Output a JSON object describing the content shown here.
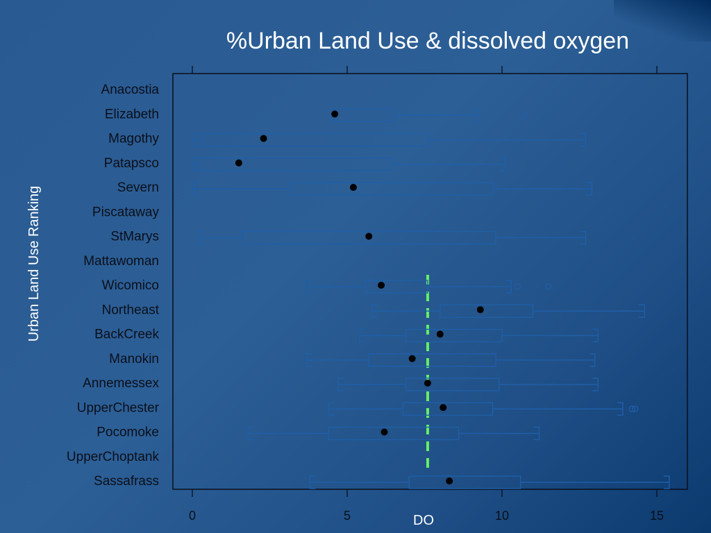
{
  "colors": {
    "background": "#2c5f96",
    "box_stroke": "#1f5fa8",
    "median_dot": "#000000",
    "reference_line": "#66ee66",
    "text_light": "#ffffff",
    "text_dark": "#0b0f1a"
  },
  "chart_data": {
    "type": "boxplot",
    "title": "%Urban Land Use & dissolved oxygen",
    "xlabel": "DO",
    "ylabel": "Urban  Land Use Ranking",
    "xlim": [
      -0.6,
      15.9
    ],
    "xticks": [
      0,
      5,
      10,
      15
    ],
    "reference_line": {
      "x": 7.6,
      "style": "dashed",
      "color": "#66ee66"
    },
    "categories": [
      "Anacostia",
      "Elizabeth",
      "Magothy",
      "Patapsco",
      "Severn",
      "Piscataway",
      "StMarys",
      "Mattawoman",
      "Wicomico",
      "Northeast",
      "BackCreek",
      "Manokin",
      "Annemessex",
      "UpperChester",
      "Pocomoke",
      "UpperChoptank",
      "Sassafrass"
    ],
    "boxes": [
      null,
      {
        "whislo": 4.5,
        "q1": 4.5,
        "med": 4.6,
        "q3": 6.5,
        "whishi": 9.2,
        "fliers": [
          10.7
        ]
      },
      {
        "whislo": 0.0,
        "q1": 0.3,
        "med": 2.3,
        "q3": 7.6,
        "whishi": 12.7,
        "fliers": []
      },
      {
        "whislo": 0.0,
        "q1": 0.2,
        "med": 1.5,
        "q3": 6.5,
        "whishi": 10.1,
        "fliers": []
      },
      {
        "whislo": 0.0,
        "q1": 3.2,
        "med": 5.2,
        "q3": 9.7,
        "whishi": 12.9,
        "fliers": []
      },
      null,
      {
        "whislo": 0.2,
        "q1": 1.6,
        "med": 5.7,
        "q3": 9.8,
        "whishi": 12.7,
        "fliers": []
      },
      null,
      {
        "whislo": 3.7,
        "q1": 5.6,
        "med": 6.1,
        "q3": 7.6,
        "whishi": 10.3,
        "fliers": [
          10.5,
          11.5
        ]
      },
      {
        "whislo": 5.8,
        "q1": 8.0,
        "med": 9.3,
        "q3": 11.0,
        "whishi": 14.6,
        "fliers": []
      },
      {
        "whislo": 5.4,
        "q1": 6.9,
        "med": 8.0,
        "q3": 10.0,
        "whishi": 13.1,
        "fliers": []
      },
      {
        "whislo": 3.7,
        "q1": 5.7,
        "med": 7.1,
        "q3": 9.8,
        "whishi": 13.0,
        "fliers": []
      },
      {
        "whislo": 4.7,
        "q1": 6.9,
        "med": 7.6,
        "q3": 9.9,
        "whishi": 13.1,
        "fliers": []
      },
      {
        "whislo": 4.4,
        "q1": 6.8,
        "med": 8.1,
        "q3": 9.7,
        "whishi": 13.9,
        "fliers": [
          14.2,
          14.3
        ]
      },
      {
        "whislo": 1.8,
        "q1": 4.4,
        "med": 6.2,
        "q3": 8.6,
        "whishi": 11.2,
        "fliers": []
      },
      null,
      {
        "whislo": 3.8,
        "q1": 7.0,
        "med": 8.3,
        "q3": 10.6,
        "whishi": 15.4,
        "fliers": []
      }
    ]
  }
}
